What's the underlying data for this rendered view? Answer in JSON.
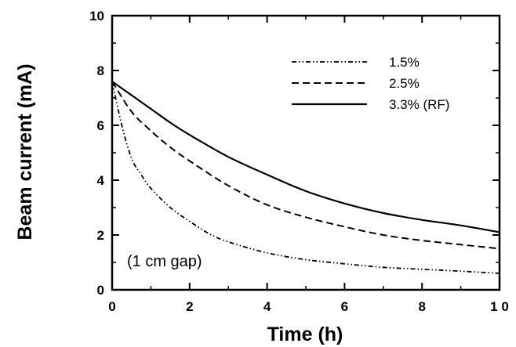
{
  "chart_data": {
    "type": "line",
    "xlabel": "Time (h)",
    "ylabel": "Beam current (mA)",
    "xlim": [
      0,
      10
    ],
    "ylim": [
      0,
      10
    ],
    "x_ticks": [
      "0",
      "2",
      "4",
      "6",
      "8",
      "1 0"
    ],
    "y_ticks": [
      "0",
      "2",
      "4",
      "6",
      "8",
      "10"
    ],
    "annotation": "(1 cm gap)",
    "legend_position": "top-right",
    "grid": false,
    "series": [
      {
        "name": "1.5%",
        "style": "dash-dot-dot",
        "x": [
          0,
          0.25,
          0.5,
          0.75,
          1,
          1.5,
          2,
          2.5,
          3,
          4,
          5,
          6,
          7,
          8,
          9,
          10
        ],
        "y": [
          7.6,
          6.0,
          4.8,
          4.2,
          3.7,
          3.0,
          2.5,
          2.05,
          1.75,
          1.35,
          1.1,
          0.95,
          0.82,
          0.75,
          0.68,
          0.6
        ]
      },
      {
        "name": "2.5%",
        "style": "dashed",
        "x": [
          0,
          0.5,
          1,
          1.5,
          2,
          3,
          4,
          5,
          6,
          7,
          8,
          9,
          10
        ],
        "y": [
          7.6,
          6.5,
          5.8,
          5.2,
          4.7,
          3.8,
          3.1,
          2.65,
          2.3,
          2.0,
          1.8,
          1.65,
          1.5
        ]
      },
      {
        "name": "3.3% (RF)",
        "style": "solid",
        "x": [
          0,
          0.5,
          1,
          1.5,
          2,
          3,
          4,
          5,
          6,
          7,
          8,
          9,
          10
        ],
        "y": [
          7.6,
          7.1,
          6.6,
          6.1,
          5.65,
          4.85,
          4.2,
          3.6,
          3.15,
          2.8,
          2.55,
          2.35,
          2.1
        ]
      }
    ],
    "colors": {
      "axis": "#000000",
      "line": "#000000"
    }
  }
}
